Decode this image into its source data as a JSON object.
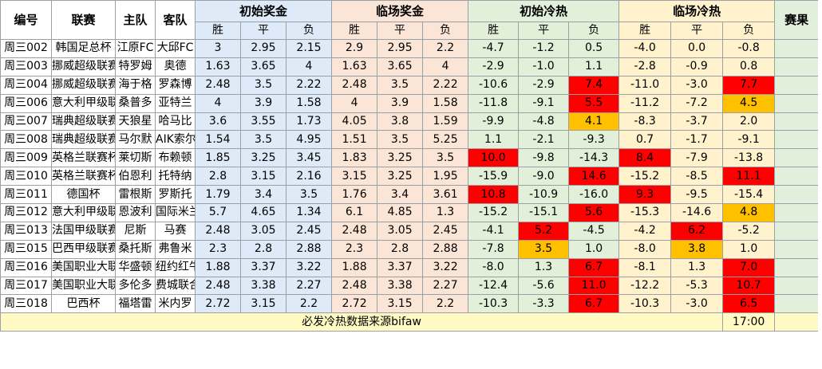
{
  "colors": {
    "init_bg": "#deeaf7",
    "live_bg": "#fbe5d6",
    "cold_init_bg": "#e2f0d9",
    "cold_live_bg": "#fff2cc",
    "hot_red": "#ff0000",
    "hot_orange": "#ffc000"
  },
  "header": {
    "id": "编号",
    "league": "联赛",
    "home": "主队",
    "away": "客队",
    "init_prize": "初始奖金",
    "live_prize": "临场奖金",
    "init_cold": "初始冷热",
    "live_cold": "临场冷热",
    "result": "赛果",
    "win": "胜",
    "draw": "平",
    "lose": "负"
  },
  "rows": [
    {
      "id": "周三002",
      "league": "韩国足总杯",
      "home": "江原FC",
      "away": "大邱FC",
      "init": [
        "3",
        "2.95",
        "2.15"
      ],
      "live": [
        "2.9",
        "2.95",
        "2.2"
      ],
      "ci": [
        "-4.7",
        "-1.2",
        "0.5"
      ],
      "cl": [
        "-4.0",
        "0.0",
        "-0.8"
      ],
      "ci_hl": [
        "",
        "",
        ""
      ],
      "cl_hl": [
        "",
        "",
        ""
      ]
    },
    {
      "id": "周三003",
      "league": "挪威超级联赛",
      "home": "特罗姆",
      "away": "奥德",
      "init": [
        "1.63",
        "3.65",
        "4"
      ],
      "live": [
        "1.63",
        "3.65",
        "4"
      ],
      "ci": [
        "-2.9",
        "-1.0",
        "1.1"
      ],
      "cl": [
        "-2.8",
        "-0.9",
        "0.8"
      ],
      "ci_hl": [
        "",
        "",
        ""
      ],
      "cl_hl": [
        "",
        "",
        ""
      ]
    },
    {
      "id": "周三004",
      "league": "挪威超级联赛",
      "home": "海于格",
      "away": "罗森博",
      "init": [
        "2.48",
        "3.5",
        "2.22"
      ],
      "live": [
        "2.48",
        "3.5",
        "2.22"
      ],
      "ci": [
        "-10.6",
        "-2.9",
        "7.4"
      ],
      "cl": [
        "-11.0",
        "-3.0",
        "7.7"
      ],
      "ci_hl": [
        "",
        "",
        "red"
      ],
      "cl_hl": [
        "",
        "",
        "red"
      ]
    },
    {
      "id": "周三006",
      "league": "意大利甲级联赛",
      "home": "桑普多",
      "away": "亚特兰",
      "init": [
        "4",
        "3.9",
        "1.58"
      ],
      "live": [
        "4",
        "3.9",
        "1.58"
      ],
      "ci": [
        "-11.8",
        "-9.1",
        "5.5"
      ],
      "cl": [
        "-11.2",
        "-7.2",
        "4.5"
      ],
      "ci_hl": [
        "",
        "",
        "red"
      ],
      "cl_hl": [
        "",
        "",
        "orange"
      ]
    },
    {
      "id": "周三007",
      "league": "瑞典超级联赛",
      "home": "天狼星",
      "away": "哈马比",
      "init": [
        "3.6",
        "3.55",
        "1.73"
      ],
      "live": [
        "4.05",
        "3.8",
        "1.59"
      ],
      "ci": [
        "-9.9",
        "-4.8",
        "4.1"
      ],
      "cl": [
        "-8.3",
        "-3.7",
        "2.0"
      ],
      "ci_hl": [
        "",
        "",
        "orange"
      ],
      "cl_hl": [
        "",
        "",
        ""
      ]
    },
    {
      "id": "周三008",
      "league": "瑞典超级联赛",
      "home": "马尔默",
      "away": "AIK索尔纳",
      "init": [
        "1.54",
        "3.5",
        "4.95"
      ],
      "live": [
        "1.51",
        "3.5",
        "5.25"
      ],
      "ci": [
        "1.1",
        "-2.1",
        "-9.3"
      ],
      "cl": [
        "0.7",
        "-1.7",
        "-9.1"
      ],
      "ci_hl": [
        "",
        "",
        ""
      ],
      "cl_hl": [
        "",
        "",
        ""
      ]
    },
    {
      "id": "周三009",
      "league": "英格兰联赛杯",
      "home": "莱切斯",
      "away": "布赖顿",
      "init": [
        "1.85",
        "3.25",
        "3.45"
      ],
      "live": [
        "1.83",
        "3.25",
        "3.5"
      ],
      "ci": [
        "10.0",
        "-9.8",
        "-14.3"
      ],
      "cl": [
        "8.4",
        "-7.9",
        "-13.8"
      ],
      "ci_hl": [
        "red",
        "",
        ""
      ],
      "cl_hl": [
        "red",
        "",
        ""
      ]
    },
    {
      "id": "周三010",
      "league": "英格兰联赛杯",
      "home": "伯恩利",
      "away": "托特纳",
      "init": [
        "2.8",
        "3.15",
        "2.16"
      ],
      "live": [
        "3.15",
        "3.25",
        "1.95"
      ],
      "ci": [
        "-15.9",
        "-9.0",
        "14.6"
      ],
      "cl": [
        "-15.2",
        "-8.5",
        "11.1"
      ],
      "ci_hl": [
        "",
        "",
        "red"
      ],
      "cl_hl": [
        "",
        "",
        "red"
      ]
    },
    {
      "id": "周三011",
      "league": "德国杯",
      "home": "雷根斯",
      "away": "罗斯托",
      "init": [
        "1.79",
        "3.4",
        "3.5"
      ],
      "live": [
        "1.76",
        "3.4",
        "3.61"
      ],
      "ci": [
        "10.8",
        "-10.9",
        "-16.0"
      ],
      "cl": [
        "9.3",
        "-9.5",
        "-15.4"
      ],
      "ci_hl": [
        "red",
        "",
        ""
      ],
      "cl_hl": [
        "red",
        "",
        ""
      ]
    },
    {
      "id": "周三012",
      "league": "意大利甲级联赛",
      "home": "恩波利",
      "away": "国际米兰",
      "init": [
        "5.7",
        "4.65",
        "1.34"
      ],
      "live": [
        "6.1",
        "4.85",
        "1.3"
      ],
      "ci": [
        "-15.2",
        "-15.1",
        "5.6"
      ],
      "cl": [
        "-15.3",
        "-14.6",
        "4.8"
      ],
      "ci_hl": [
        "",
        "",
        "red"
      ],
      "cl_hl": [
        "",
        "",
        "orange"
      ]
    },
    {
      "id": "周三013",
      "league": "法国甲级联赛",
      "home": "尼斯",
      "away": "马赛",
      "init": [
        "2.48",
        "3.05",
        "2.45"
      ],
      "live": [
        "2.48",
        "3.05",
        "2.45"
      ],
      "ci": [
        "-4.1",
        "5.2",
        "-4.5"
      ],
      "cl": [
        "-4.2",
        "6.2",
        "-5.2"
      ],
      "ci_hl": [
        "",
        "red",
        ""
      ],
      "cl_hl": [
        "",
        "red",
        ""
      ]
    },
    {
      "id": "周三015",
      "league": "巴西甲级联赛",
      "home": "桑托斯",
      "away": "弗鲁米",
      "init": [
        "2.3",
        "2.8",
        "2.88"
      ],
      "live": [
        "2.3",
        "2.8",
        "2.88"
      ],
      "ci": [
        "-7.8",
        "3.5",
        "1.0"
      ],
      "cl": [
        "-8.0",
        "3.8",
        "1.0"
      ],
      "ci_hl": [
        "",
        "orange",
        ""
      ],
      "cl_hl": [
        "",
        "orange",
        ""
      ]
    },
    {
      "id": "周三016",
      "league": "美国职业大联盟",
      "home": "华盛顿",
      "away": "纽约红牛",
      "init": [
        "1.88",
        "3.37",
        "3.22"
      ],
      "live": [
        "1.88",
        "3.37",
        "3.22"
      ],
      "ci": [
        "-8.0",
        "1.3",
        "6.7"
      ],
      "cl": [
        "-8.1",
        "1.3",
        "7.0"
      ],
      "ci_hl": [
        "",
        "",
        "red"
      ],
      "cl_hl": [
        "",
        "",
        "red"
      ]
    },
    {
      "id": "周三017",
      "league": "美国职业大联盟",
      "home": "多伦多",
      "away": "费城联合",
      "init": [
        "2.48",
        "3.38",
        "2.27"
      ],
      "live": [
        "2.48",
        "3.38",
        "2.27"
      ],
      "ci": [
        "-12.4",
        "-5.6",
        "11.0"
      ],
      "cl": [
        "-12.2",
        "-5.3",
        "10.7"
      ],
      "ci_hl": [
        "",
        "",
        "red"
      ],
      "cl_hl": [
        "",
        "",
        "red"
      ]
    },
    {
      "id": "周三018",
      "league": "巴西杯",
      "home": "福塔雷",
      "away": "米内罗",
      "init": [
        "2.72",
        "3.15",
        "2.2"
      ],
      "live": [
        "2.72",
        "3.15",
        "2.2"
      ],
      "ci": [
        "-10.3",
        "-3.3",
        "6.7"
      ],
      "cl": [
        "-10.3",
        "-3.0",
        "6.5"
      ],
      "ci_hl": [
        "",
        "",
        "red"
      ],
      "cl_hl": [
        "",
        "",
        "red"
      ]
    }
  ],
  "footer": {
    "note": "必发冷热数据来源bifaw",
    "time": "17:00"
  }
}
